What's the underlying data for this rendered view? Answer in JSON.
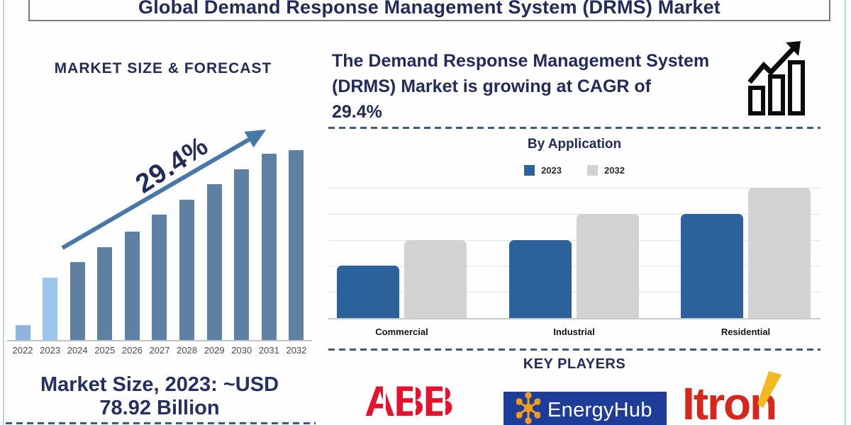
{
  "page": {
    "title": "Global Demand Response Management System (DRMS) Market"
  },
  "left": {
    "section_title": "MARKET SIZE & FORECAST",
    "cagr_annotation": "29.4%",
    "market_size_lines": [
      "Market Size, 2023: ~USD",
      "78.92 Billion"
    ]
  },
  "right": {
    "cagr_lines": [
      "The Demand Response Management System",
      "(DRMS) Market is growing at CAGR of",
      "29.4%"
    ],
    "by_application_title": "By Application",
    "key_players_title": "KEY PLAYERS",
    "players": [
      "ABB",
      "EnergyHub",
      "Itron"
    ]
  },
  "colors": {
    "navy_text": "#222c5c",
    "forecast_bar_light_2022": "#8db5de",
    "forecast_bar_light_2023": "#9cc4ec",
    "forecast_bar_steel": "#5e81a3",
    "trend_arrow": "#4678a8",
    "app_2023_blue": "#2b629b",
    "app_2032_gray": "#d3d3d3",
    "dashed_separator": "#3c5a85",
    "abb_red": "#e8112d",
    "energyhub_blue": "#1e3d99",
    "energyhub_orange": "#f29c1f",
    "itron_red": "#d6261d",
    "itron_yellow": "#f3b71f"
  },
  "chart_data": [
    {
      "type": "bar",
      "title": "MARKET SIZE & FORECAST",
      "categories": [
        "2022",
        "2023",
        "2024",
        "2025",
        "2026",
        "2027",
        "2028",
        "2029",
        "2030",
        "2031",
        "2032"
      ],
      "values_pct_of_max": [
        8,
        33,
        41,
        49,
        57,
        66,
        74,
        82,
        90,
        98,
        100
      ],
      "bar_colors": [
        "#8db5de",
        "#9cc4ec",
        "#5e81a3",
        "#5e81a3",
        "#5e81a3",
        "#5e81a3",
        "#5e81a3",
        "#5e81a3",
        "#5e81a3",
        "#5e81a3",
        "#5e81a3"
      ],
      "annotation": "29.4%",
      "known_value": {
        "year": "2023",
        "label": "~USD 78.92 Billion"
      },
      "xlabel": "",
      "ylabel": "",
      "y_axis_shown": false,
      "grid": false
    },
    {
      "type": "bar",
      "title": "By Application",
      "categories": [
        "Commercial",
        "Industrial",
        "Residential"
      ],
      "series": [
        {
          "name": "2023",
          "color": "#2b629b",
          "values": [
            2,
            3,
            4
          ]
        },
        {
          "name": "2032",
          "color": "#d3d3d3",
          "values": [
            3,
            4,
            5
          ]
        }
      ],
      "ylim": [
        0,
        5
      ],
      "grid": true,
      "y_tick_labels_shown": false,
      "legend_position": "top"
    }
  ]
}
